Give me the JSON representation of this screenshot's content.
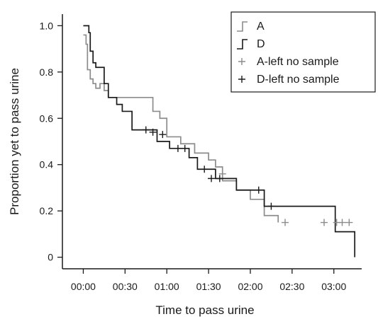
{
  "chart_data": {
    "type": "line",
    "subtype": "kaplan-meier step",
    "title": "",
    "xlabel": "Time to pass urine",
    "ylabel": "Proportion yet to pass urine",
    "x_unit": "minutes",
    "xlim": [
      -15,
      200
    ],
    "ylim": [
      -0.05,
      1.05
    ],
    "x_ticks": [
      0,
      30,
      60,
      90,
      120,
      150,
      180
    ],
    "x_tick_labels": [
      "00:00",
      "00:30",
      "01:00",
      "01:30",
      "02:00",
      "02:30",
      "03:00"
    ],
    "y_ticks": [
      0,
      0.2,
      0.4,
      0.6,
      0.8,
      1.0
    ],
    "y_tick_labels": [
      "0",
      "0.2",
      "0.4",
      "0.6",
      "0.8",
      "1.0"
    ],
    "grid": false,
    "legend_position": "top-right",
    "legend": [
      "A",
      "D",
      "A-left no sample",
      "D-left no sample"
    ],
    "series": [
      {
        "name": "A",
        "color": "#8c8c8c",
        "steps": [
          [
            0,
            0.96
          ],
          [
            2,
            0.92
          ],
          [
            3,
            0.81
          ],
          [
            5,
            0.77
          ],
          [
            7,
            0.75
          ],
          [
            9,
            0.73
          ],
          [
            12,
            0.75
          ],
          [
            15,
            0.72
          ],
          [
            18,
            0.69
          ],
          [
            50,
            0.63
          ],
          [
            55,
            0.6
          ],
          [
            60,
            0.52
          ],
          [
            70,
            0.49
          ],
          [
            80,
            0.45
          ],
          [
            90,
            0.42
          ],
          [
            95,
            0.39
          ],
          [
            100,
            0.33
          ],
          [
            110,
            0.29
          ],
          [
            120,
            0.25
          ],
          [
            130,
            0.18
          ],
          [
            140,
            0.15
          ]
        ],
        "end_x": 140,
        "censored": [
          [
            100,
            0.36
          ],
          [
            145,
            0.15
          ],
          [
            173,
            0.15
          ],
          [
            182,
            0.15
          ],
          [
            186,
            0.15
          ],
          [
            191,
            0.15
          ]
        ]
      },
      {
        "name": "D",
        "color": "#1a1a1a",
        "steps": [
          [
            0,
            1.0
          ],
          [
            4,
            0.97
          ],
          [
            5,
            0.89
          ],
          [
            7,
            0.84
          ],
          [
            9,
            0.82
          ],
          [
            15,
            0.75
          ],
          [
            18,
            0.69
          ],
          [
            24,
            0.66
          ],
          [
            28,
            0.63
          ],
          [
            35,
            0.55
          ],
          [
            53,
            0.5
          ],
          [
            62,
            0.47
          ],
          [
            76,
            0.43
          ],
          [
            82,
            0.38
          ],
          [
            95,
            0.34
          ],
          [
            110,
            0.29
          ],
          [
            130,
            0.22
          ],
          [
            181,
            0.11
          ],
          [
            188,
            0.11
          ],
          [
            195,
            0.0
          ]
        ],
        "end_x": 195,
        "censored": [
          [
            45,
            0.55
          ],
          [
            50,
            0.54
          ],
          [
            57,
            0.53
          ],
          [
            68,
            0.47
          ],
          [
            73,
            0.47
          ],
          [
            87,
            0.38
          ],
          [
            92,
            0.34
          ],
          [
            98,
            0.34
          ],
          [
            126,
            0.29
          ],
          [
            135,
            0.22
          ]
        ]
      }
    ]
  }
}
